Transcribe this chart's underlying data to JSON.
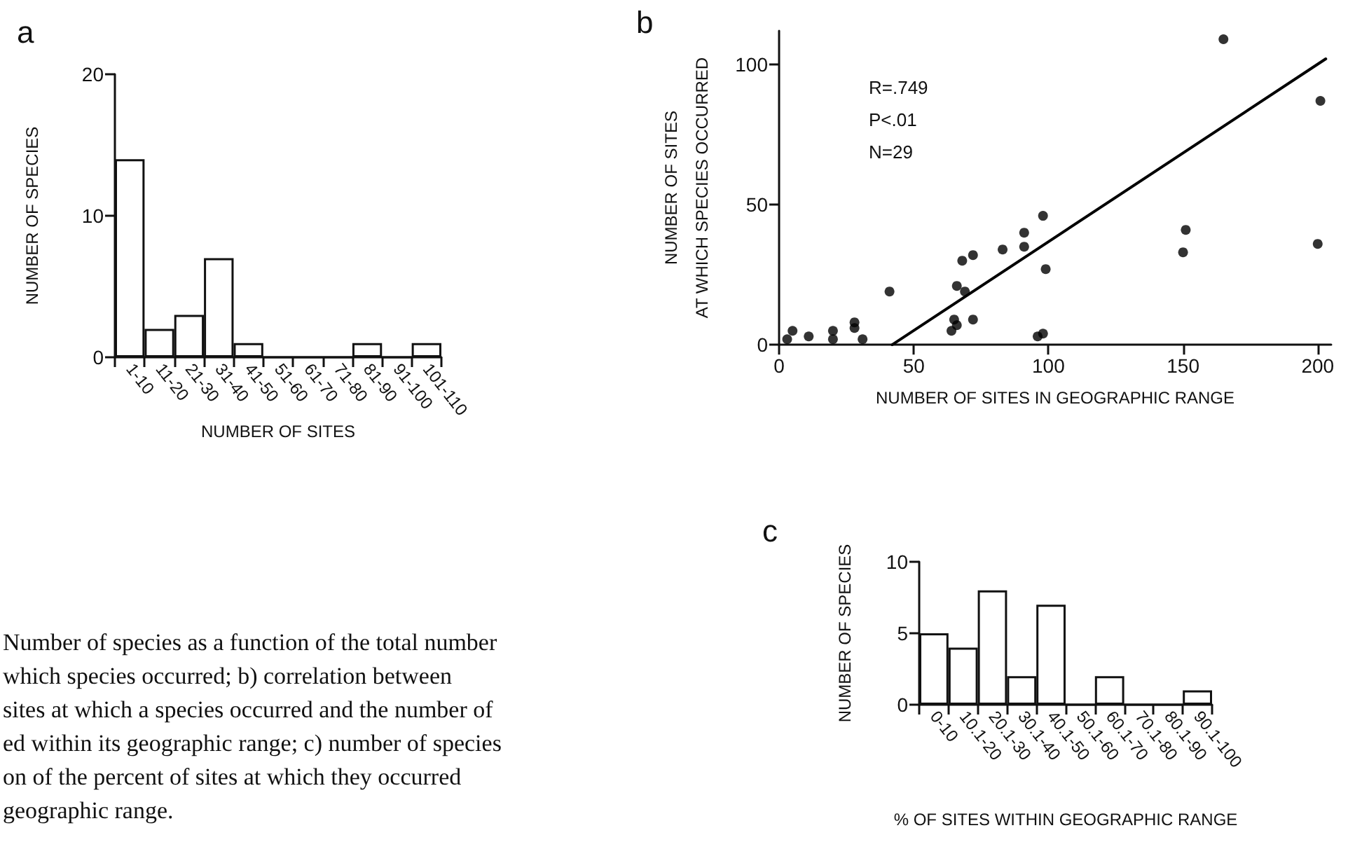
{
  "chart_data": [
    {
      "type": "bar",
      "title": "a",
      "xlabel": "NUMBER OF SITES",
      "ylabel": "NUMBER OF SPECIES",
      "categories": [
        "1-10",
        "11-20",
        "21-30",
        "31-40",
        "41-50",
        "51-60",
        "61-70",
        "71-80",
        "81-90",
        "91-100",
        "101-110"
      ],
      "values": [
        14,
        2,
        3,
        7,
        1,
        0,
        0,
        0,
        1,
        0,
        1
      ],
      "color": "#ffffff",
      "ylim": [
        0,
        20
      ],
      "yticks": [
        0,
        10,
        20
      ],
      "grid": false,
      "annotations": [
        "Number of species as a function of the total number",
        "which species occurred; b) correlation between",
        "sites at which a species occurred and the number of",
        "ed within its geographic range; c) number of species",
        "on of the percent of sites at which they occurred",
        "geographic range."
      ]
    },
    {
      "type": "scatter",
      "title": "b",
      "xlabel": "NUMBER OF SITES IN GEOGRAPHIC RANGE",
      "ylabel": "NUMBER OF SITES\nAT WHICH SPECIES OCCURRED",
      "xlim": [
        0,
        205
      ],
      "xticks": [
        0,
        50,
        100,
        150,
        200
      ],
      "ylim": [
        0,
        112
      ],
      "yticks": [
        0,
        50,
        100
      ],
      "grid": false,
      "series": [
        {
          "type": "scatter",
          "marker": "circle",
          "color": "#000000",
          "x": [
            3,
            5,
            11,
            20,
            20,
            28,
            28,
            31,
            41,
            64,
            65,
            66,
            66,
            68,
            69,
            72,
            72,
            83,
            91,
            91,
            98,
            99,
            96,
            98,
            150,
            151,
            165,
            201,
            200
          ],
          "values": [
            2,
            5,
            3,
            5,
            2,
            8,
            6,
            2,
            19,
            5,
            9,
            7,
            21,
            30,
            19,
            32,
            9,
            34,
            40,
            35,
            46,
            27,
            3,
            4,
            33,
            41,
            109,
            87,
            36
          ]
        },
        {
          "type": "line",
          "marker": "none",
          "color": "#000000",
          "x": [
            42,
            203
          ],
          "values": [
            0,
            102
          ]
        }
      ],
      "annotations": [
        "R=.749",
        "P<.01",
        "N=29"
      ]
    },
    {
      "type": "bar",
      "title": "c",
      "xlabel": "% OF SITES WITHIN GEOGRAPHIC RANGE",
      "ylabel": "NUMBER OF SPECIES",
      "categories": [
        "0-10",
        "10.1-20",
        "20.1-30",
        "30.1-40",
        "40.1-50",
        "50.1-60",
        "60.1-70",
        "70.1-80",
        "80.1-90",
        "90.1-100"
      ],
      "values": [
        5,
        4,
        8,
        2,
        7,
        0,
        2,
        0,
        0,
        1
      ],
      "color": "#ffffff",
      "ylim": [
        0,
        10
      ],
      "yticks": [
        0,
        5,
        10
      ],
      "grid": false
    }
  ]
}
